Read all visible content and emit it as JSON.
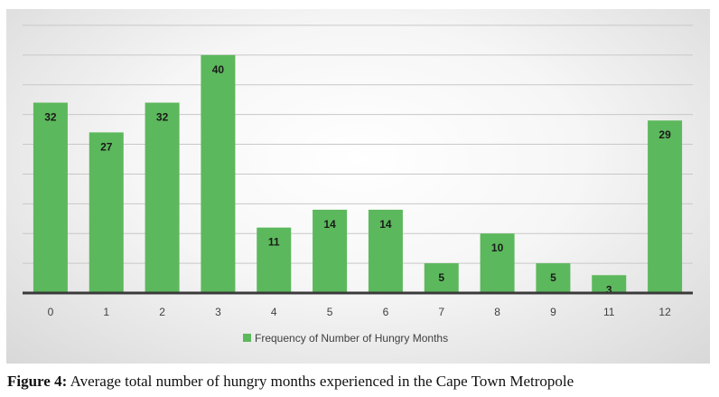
{
  "chart_data": {
    "type": "bar",
    "categories": [
      "0",
      "1",
      "2",
      "3",
      "4",
      "5",
      "6",
      "7",
      "8",
      "9",
      "11",
      "12"
    ],
    "values": [
      32,
      27,
      32,
      40,
      11,
      14,
      14,
      5,
      10,
      5,
      3,
      29
    ],
    "series_name": "Frequency of Number of Hungry Months",
    "ylim": [
      0,
      45
    ],
    "gridline_step": 5,
    "legend_position": "bottom",
    "bar_color": "#5cb85c",
    "axis_color": "#3a3a3a"
  },
  "caption": {
    "label": "Figure 4:",
    "text": " Average total number of hungry months experienced in the Cape Town Metropole"
  }
}
